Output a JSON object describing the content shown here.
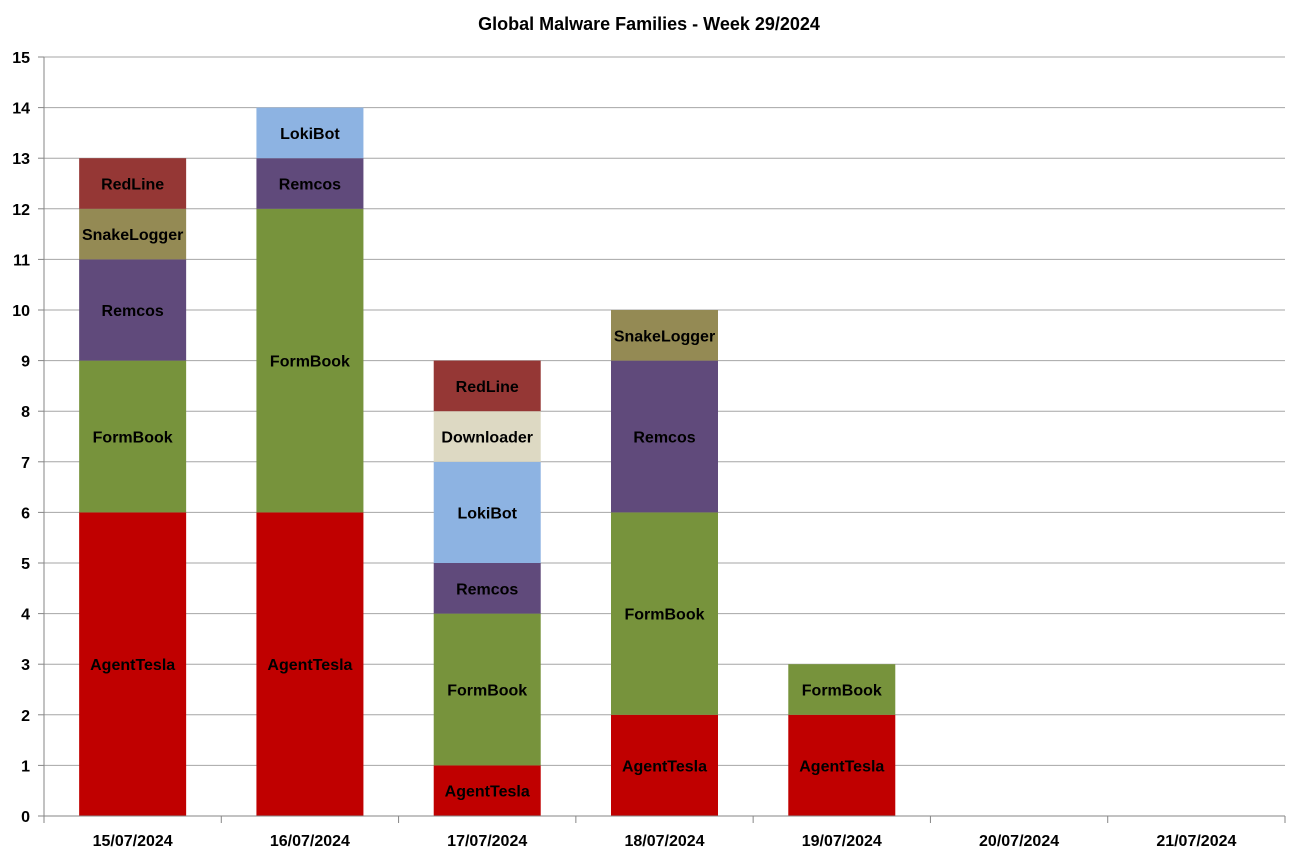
{
  "chart_data": {
    "type": "bar",
    "stacked": true,
    "title": "Global Malware Families - Week 29/2024",
    "xlabel": "",
    "ylabel": "",
    "ylim": [
      0,
      15
    ],
    "yticks": [
      0,
      1,
      2,
      3,
      4,
      5,
      6,
      7,
      8,
      9,
      10,
      11,
      12,
      13,
      14,
      15
    ],
    "grid": true,
    "legend": "none",
    "categories": [
      "15/07/2024",
      "16/07/2024",
      "17/07/2024",
      "18/07/2024",
      "19/07/2024",
      "20/07/2024",
      "21/07/2024"
    ],
    "series": [
      {
        "name": "AgentTesla",
        "color": "#c00000",
        "values": [
          6,
          6,
          1,
          2,
          2,
          0,
          0
        ]
      },
      {
        "name": "FormBook",
        "color": "#77933c",
        "values": [
          3,
          6,
          3,
          4,
          1,
          0,
          0
        ]
      },
      {
        "name": "Remcos",
        "color": "#604a7b",
        "values": [
          2,
          1,
          1,
          3,
          0,
          0,
          0
        ]
      },
      {
        "name": "LokiBot",
        "color": "#8db3e2",
        "values": [
          0,
          1,
          2,
          0,
          0,
          0,
          0
        ]
      },
      {
        "name": "Downloader",
        "color": "#ddd9c3",
        "values": [
          0,
          0,
          1,
          0,
          0,
          0,
          0
        ]
      },
      {
        "name": "SnakeLogger",
        "color": "#948a54",
        "values": [
          1,
          0,
          0,
          1,
          0,
          0,
          0
        ]
      },
      {
        "name": "RedLine",
        "color": "#953735",
        "values": [
          1,
          0,
          1,
          0,
          0,
          0,
          0
        ]
      }
    ],
    "stack_order": [
      [
        "AgentTesla",
        "FormBook",
        "Remcos",
        "SnakeLogger",
        "RedLine"
      ],
      [
        "AgentTesla",
        "FormBook",
        "Remcos",
        "LokiBot"
      ],
      [
        "AgentTesla",
        "FormBook",
        "Remcos",
        "LokiBot",
        "Downloader",
        "RedLine"
      ],
      [
        "AgentTesla",
        "FormBook",
        "Remcos",
        "SnakeLogger"
      ],
      [
        "AgentTesla",
        "FormBook"
      ],
      [],
      []
    ]
  }
}
